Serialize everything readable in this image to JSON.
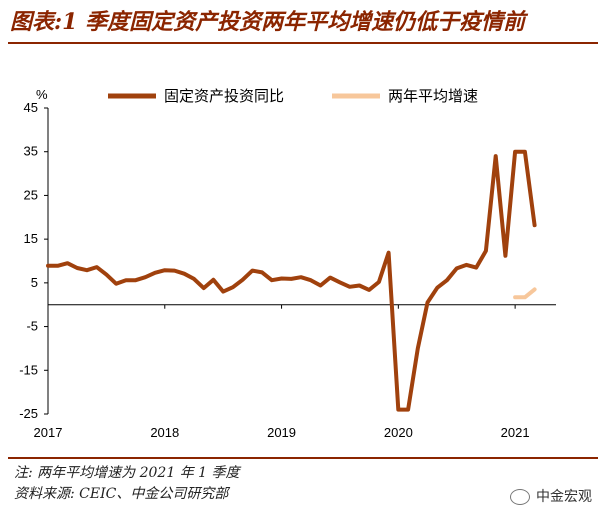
{
  "title": "图表:1 季度固定资产投资两年平均增速仍低于疫情前",
  "note": "注: 两年平均增速为 2021 年 1 季度",
  "source": "资料来源: CEIC、中金公司研究部",
  "watermark": "中金宏观",
  "colors": {
    "series1": "#A0410D",
    "series2": "#F7C79B",
    "accent": "#8B2500"
  },
  "chart_data": {
    "type": "line",
    "ylabel": "%",
    "ylim": [
      -25,
      45
    ],
    "yticks": [
      45,
      35,
      25,
      15,
      5,
      -5,
      -15,
      -25
    ],
    "xticks": [
      "2017",
      "2018",
      "2019",
      "2020",
      "2021"
    ],
    "grid": false,
    "legend_position": "top",
    "series": [
      {
        "name": "固定资产投资同比",
        "color": "#A0410D",
        "points": [
          [
            "2017-01",
            8.9
          ],
          [
            "2017-02",
            8.9
          ],
          [
            "2017-03",
            9.5
          ],
          [
            "2017-04",
            8.4
          ],
          [
            "2017-05",
            7.9
          ],
          [
            "2017-06",
            8.6
          ],
          [
            "2017-07",
            6.9
          ],
          [
            "2017-08",
            4.8
          ],
          [
            "2017-09",
            5.6
          ],
          [
            "2017-10",
            5.6
          ],
          [
            "2017-11",
            6.3
          ],
          [
            "2017-12",
            7.3
          ],
          [
            "2018-01",
            7.9
          ],
          [
            "2018-02",
            7.8
          ],
          [
            "2018-03",
            7.1
          ],
          [
            "2018-04",
            5.9
          ],
          [
            "2018-05",
            3.8
          ],
          [
            "2018-06",
            5.7
          ],
          [
            "2018-07",
            3.0
          ],
          [
            "2018-08",
            4.0
          ],
          [
            "2018-09",
            5.7
          ],
          [
            "2018-10",
            7.8
          ],
          [
            "2018-11",
            7.4
          ],
          [
            "2018-12",
            5.6
          ],
          [
            "2019-01",
            6.0
          ],
          [
            "2019-02",
            5.9
          ],
          [
            "2019-03",
            6.3
          ],
          [
            "2019-04",
            5.6
          ],
          [
            "2019-05",
            4.4
          ],
          [
            "2019-06",
            6.2
          ],
          [
            "2019-07",
            5.1
          ],
          [
            "2019-08",
            4.1
          ],
          [
            "2019-09",
            4.4
          ],
          [
            "2019-10",
            3.4
          ],
          [
            "2019-11",
            5.2
          ],
          [
            "2019-12",
            11.9
          ],
          [
            "2020-01",
            -24.0
          ],
          [
            "2020-02",
            -24.0
          ],
          [
            "2020-03",
            -10.0
          ],
          [
            "2020-04",
            0.5
          ],
          [
            "2020-05",
            3.9
          ],
          [
            "2020-06",
            5.6
          ],
          [
            "2020-07",
            8.3
          ],
          [
            "2020-08",
            9.1
          ],
          [
            "2020-09",
            8.5
          ],
          [
            "2020-10",
            12.3
          ],
          [
            "2020-11",
            34.0
          ],
          [
            "2020-12",
            11.2
          ],
          [
            "2021-01",
            35.0
          ],
          [
            "2021-02",
            35.0
          ],
          [
            "2021-03",
            18.2
          ]
        ]
      },
      {
        "name": "两年平均增速",
        "color": "#F7C79B",
        "points": [
          [
            "2021-01",
            1.7
          ],
          [
            "2021-02",
            1.7
          ],
          [
            "2021-03",
            3.5
          ]
        ]
      }
    ]
  }
}
